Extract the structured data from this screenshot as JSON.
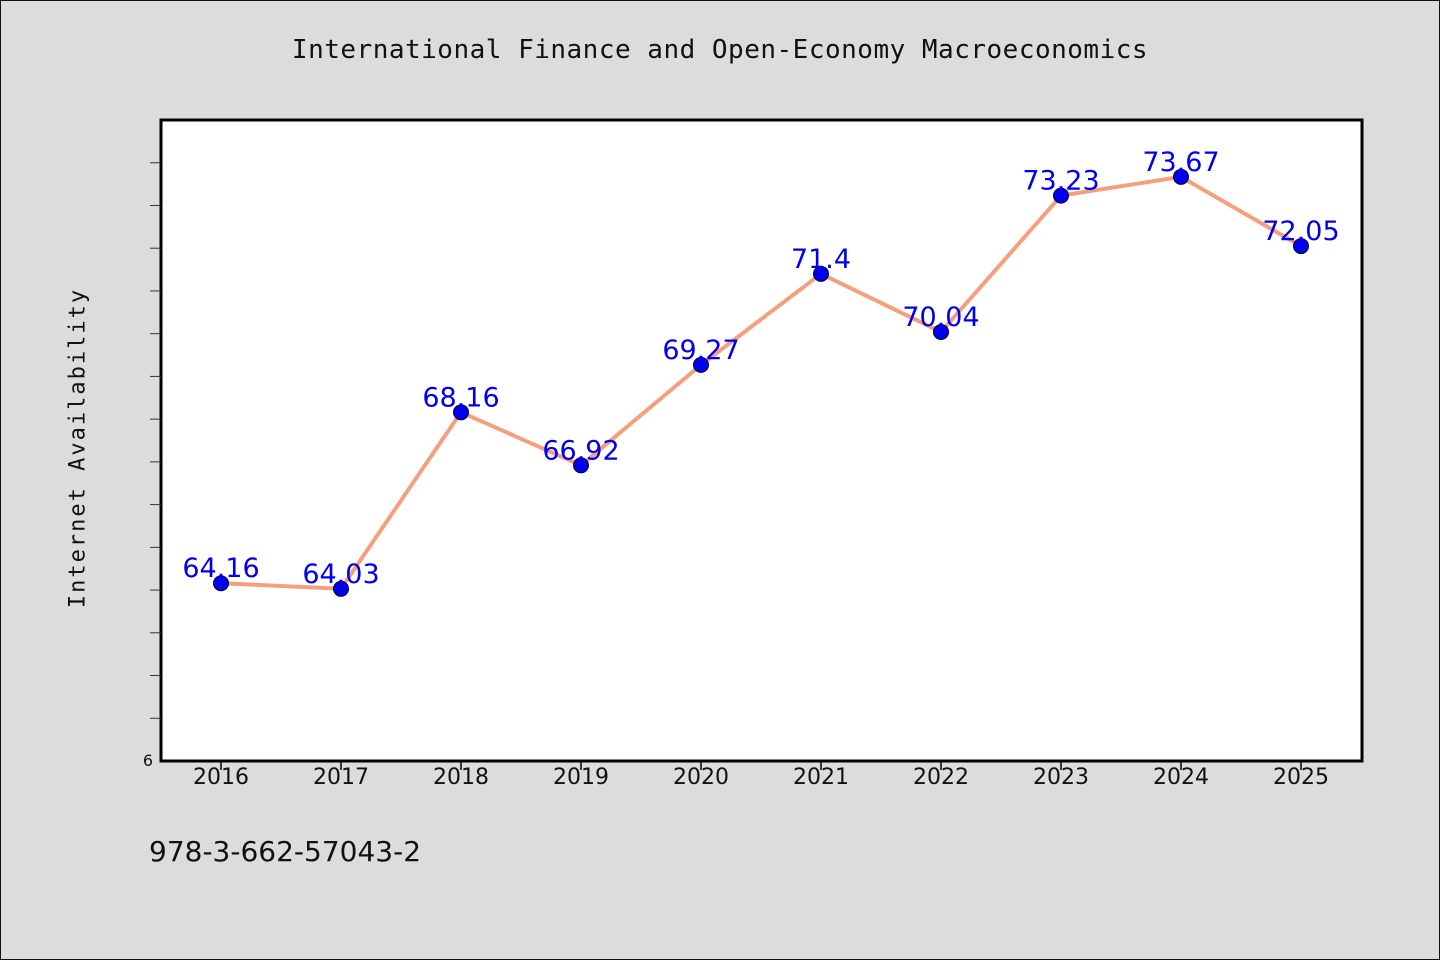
{
  "chart_data": {
    "type": "line",
    "title": "International Finance and Open-Economy Macroeconomics",
    "xlabel": "",
    "ylabel": "Internet Availability",
    "categories": [
      "2016",
      "2017",
      "2018",
      "2019",
      "2020",
      "2021",
      "2022",
      "2023",
      "2024",
      "2025"
    ],
    "series": [
      {
        "values": [
          64.16,
          64.03,
          68.16,
          66.92,
          69.27,
          71.4,
          70.04,
          73.23,
          73.67,
          72.05
        ],
        "data_labels": [
          "64.16",
          "64.03",
          "68.16",
          "66.92",
          "69.27",
          "71.4",
          "70.04",
          "73.23",
          "73.67",
          "72.05"
        ],
        "line_color": "#f4a07c",
        "marker_color": "#0000ee"
      }
    ],
    "y_tick_labels": [
      "6"
    ],
    "ylim": [
      60,
      75
    ],
    "grid": false,
    "legend": "none",
    "label_color": "#0000ee"
  },
  "footer": {
    "isbn": "978-3-662-57043-2"
  }
}
